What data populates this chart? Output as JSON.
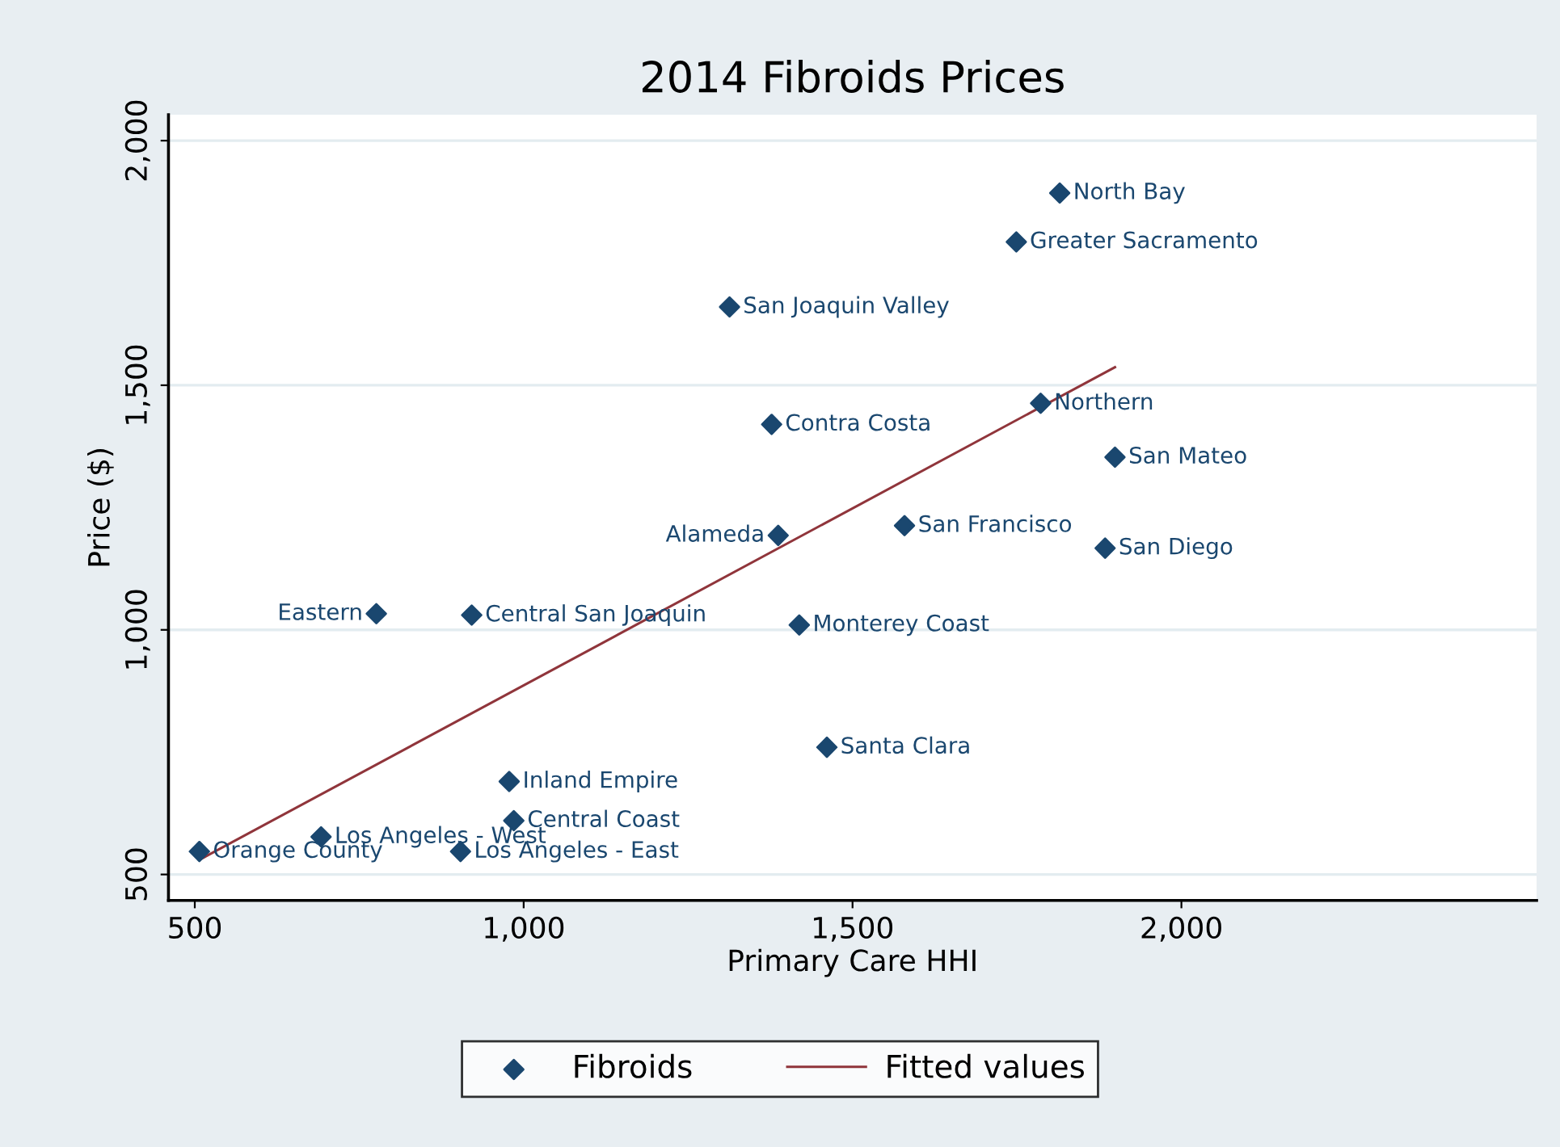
{
  "chart_data": {
    "type": "scatter",
    "title": "2014 Fibroids Prices",
    "xlabel": "Primary Care HHI",
    "ylabel": "Price ($)",
    "xlim": [
      460,
      2540
    ],
    "ylim": [
      447,
      2053
    ],
    "xticks": [
      500,
      {
        "value": 1000,
        "label": "1,000"
      },
      {
        "value": 1500,
        "label": "1,500"
      },
      {
        "value": 2000,
        "label": "2,000"
      }
    ],
    "yticks": [
      500,
      {
        "value": 1000,
        "label": "1,000"
      },
      {
        "value": 1500,
        "label": "1,500"
      },
      {
        "value": 2000,
        "label": "2,000"
      }
    ],
    "grid": "y",
    "legend": "bottom",
    "series": [
      {
        "name": "Fibroids",
        "marker": "diamond",
        "color": "#1a476f",
        "x": [
          1815,
          1749,
          1313,
          1786,
          1377,
          1899,
          1579,
          1387,
          1884,
          776,
          921,
          1419,
          1461,
          978,
          985,
          692,
          904,
          507
        ],
        "values": [
          1893,
          1793,
          1660,
          1463,
          1420,
          1353,
          1213,
          1193,
          1167,
          1033,
          1030,
          1010,
          760,
          690,
          610,
          577,
          547,
          547
        ]
      },
      {
        "name": "Fitted values",
        "type": "line",
        "color": "#90353b",
        "marker": "none",
        "line_style": "solid",
        "x": [
          507,
          1899
        ],
        "values": [
          530,
          1537
        ]
      }
    ],
    "annotations": [
      {
        "text": "North Bay",
        "x": 1815,
        "y": 1893
      },
      {
        "text": "Greater Sacramento",
        "x": 1749,
        "y": 1793
      },
      {
        "text": "San Joaquin Valley",
        "x": 1313,
        "y": 1660
      },
      {
        "text": "Northern",
        "x": 1786,
        "y": 1463
      },
      {
        "text": "Contra Costa",
        "x": 1377,
        "y": 1420
      },
      {
        "text": "San Mateo",
        "x": 1899,
        "y": 1353
      },
      {
        "text": "San Francisco",
        "x": 1579,
        "y": 1213
      },
      {
        "text": "Alameda",
        "x": 1387,
        "y": 1193
      },
      {
        "text": "San Diego",
        "x": 1884,
        "y": 1167
      },
      {
        "text": "Eastern",
        "x": 776,
        "y": 1033
      },
      {
        "text": "Central San Joaquin",
        "x": 921,
        "y": 1030
      },
      {
        "text": "Monterey Coast",
        "x": 1419,
        "y": 1010
      },
      {
        "text": "Santa Clara",
        "x": 1461,
        "y": 760
      },
      {
        "text": "Inland Empire",
        "x": 978,
        "y": 690
      },
      {
        "text": "Central Coast",
        "x": 985,
        "y": 610
      },
      {
        "text": "Los Angeles - West",
        "x": 692,
        "y": 577
      },
      {
        "text": "Los Angeles - East",
        "x": 904,
        "y": 547
      },
      {
        "text": "Orange County",
        "x": 507,
        "y": 547
      }
    ]
  }
}
